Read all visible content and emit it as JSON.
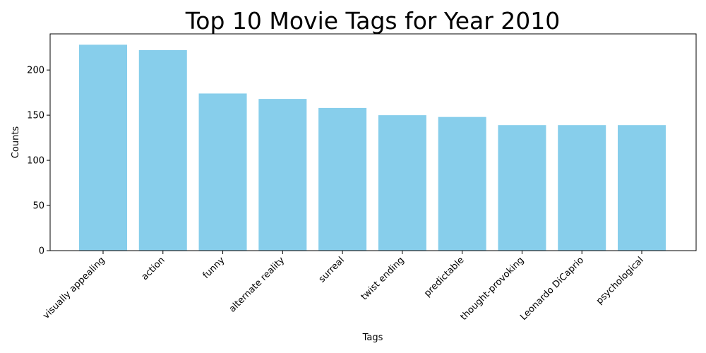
{
  "chart_data": {
    "type": "bar",
    "title": "Top 10 Movie Tags for Year 2010",
    "xlabel": "Tags",
    "ylabel": "Counts",
    "categories": [
      "visually appealing",
      "action",
      "funny",
      "alternate reality",
      "surreal",
      "twist ending",
      "predictable",
      "thought-provoking",
      "Leonardo DiCaprio",
      "psychological"
    ],
    "values": [
      228,
      222,
      174,
      168,
      158,
      150,
      148,
      139,
      139,
      139
    ],
    "yticks": [
      0,
      50,
      100,
      150,
      200
    ],
    "ylim": [
      0,
      240
    ],
    "grid": false,
    "legend": "none",
    "bar_color": "#87CEEB",
    "x_tick_rotation_deg": 45
  }
}
